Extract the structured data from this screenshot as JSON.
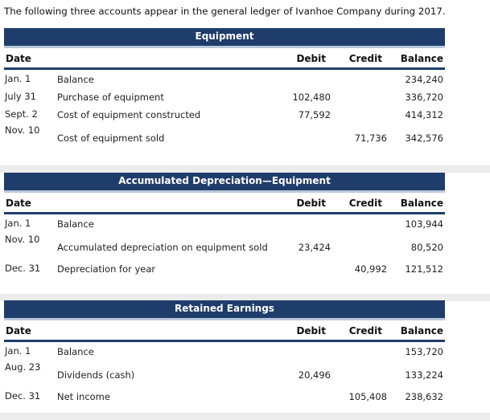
{
  "intro": "The following three accounts appear in the general ledger of Ivanhoe Company during 2017.",
  "headers": {
    "date": "Date",
    "debit": "Debit",
    "credit": "Credit",
    "balance": "Balance"
  },
  "ledgers": [
    {
      "title": "Equipment",
      "rows": [
        {
          "date": "Jan. 1",
          "desc": "Balance",
          "debit": "",
          "credit": "",
          "balance": "234,240"
        },
        {
          "date": "July 31",
          "desc": "Purchase of equipment",
          "debit": "102,480",
          "credit": "",
          "balance": "336,720"
        },
        {
          "date": "Sept. 2",
          "desc": "Cost of equipment constructed",
          "debit": "77,592",
          "credit": "",
          "balance": "414,312"
        },
        {
          "date": "Nov. 10",
          "desc": "Cost of equipment sold",
          "debit": "",
          "credit": "71,736",
          "balance": "342,576"
        }
      ]
    },
    {
      "title": "Accumulated Depreciation—Equipment",
      "rows": [
        {
          "date": "Jan. 1",
          "desc": "Balance",
          "debit": "",
          "credit": "",
          "balance": "103,944"
        },
        {
          "date": "Nov. 10",
          "desc": "Accumulated depreciation on equipment sold",
          "debit": "23,424",
          "credit": "",
          "balance": "80,520"
        },
        {
          "date": "Dec. 31",
          "desc": "Depreciation for year",
          "debit": "",
          "credit": "40,992",
          "balance": "121,512"
        }
      ]
    },
    {
      "title": "Retained Earnings",
      "rows": [
        {
          "date": "Jan. 1",
          "desc": "Balance",
          "debit": "",
          "credit": "",
          "balance": "153,720"
        },
        {
          "date": "Aug. 23",
          "desc": "Dividends (cash)",
          "debit": "20,496",
          "credit": "",
          "balance": "133,224"
        },
        {
          "date": "Dec. 31",
          "desc": "Net income",
          "debit": "",
          "credit": "105,408",
          "balance": "238,632"
        }
      ]
    }
  ]
}
